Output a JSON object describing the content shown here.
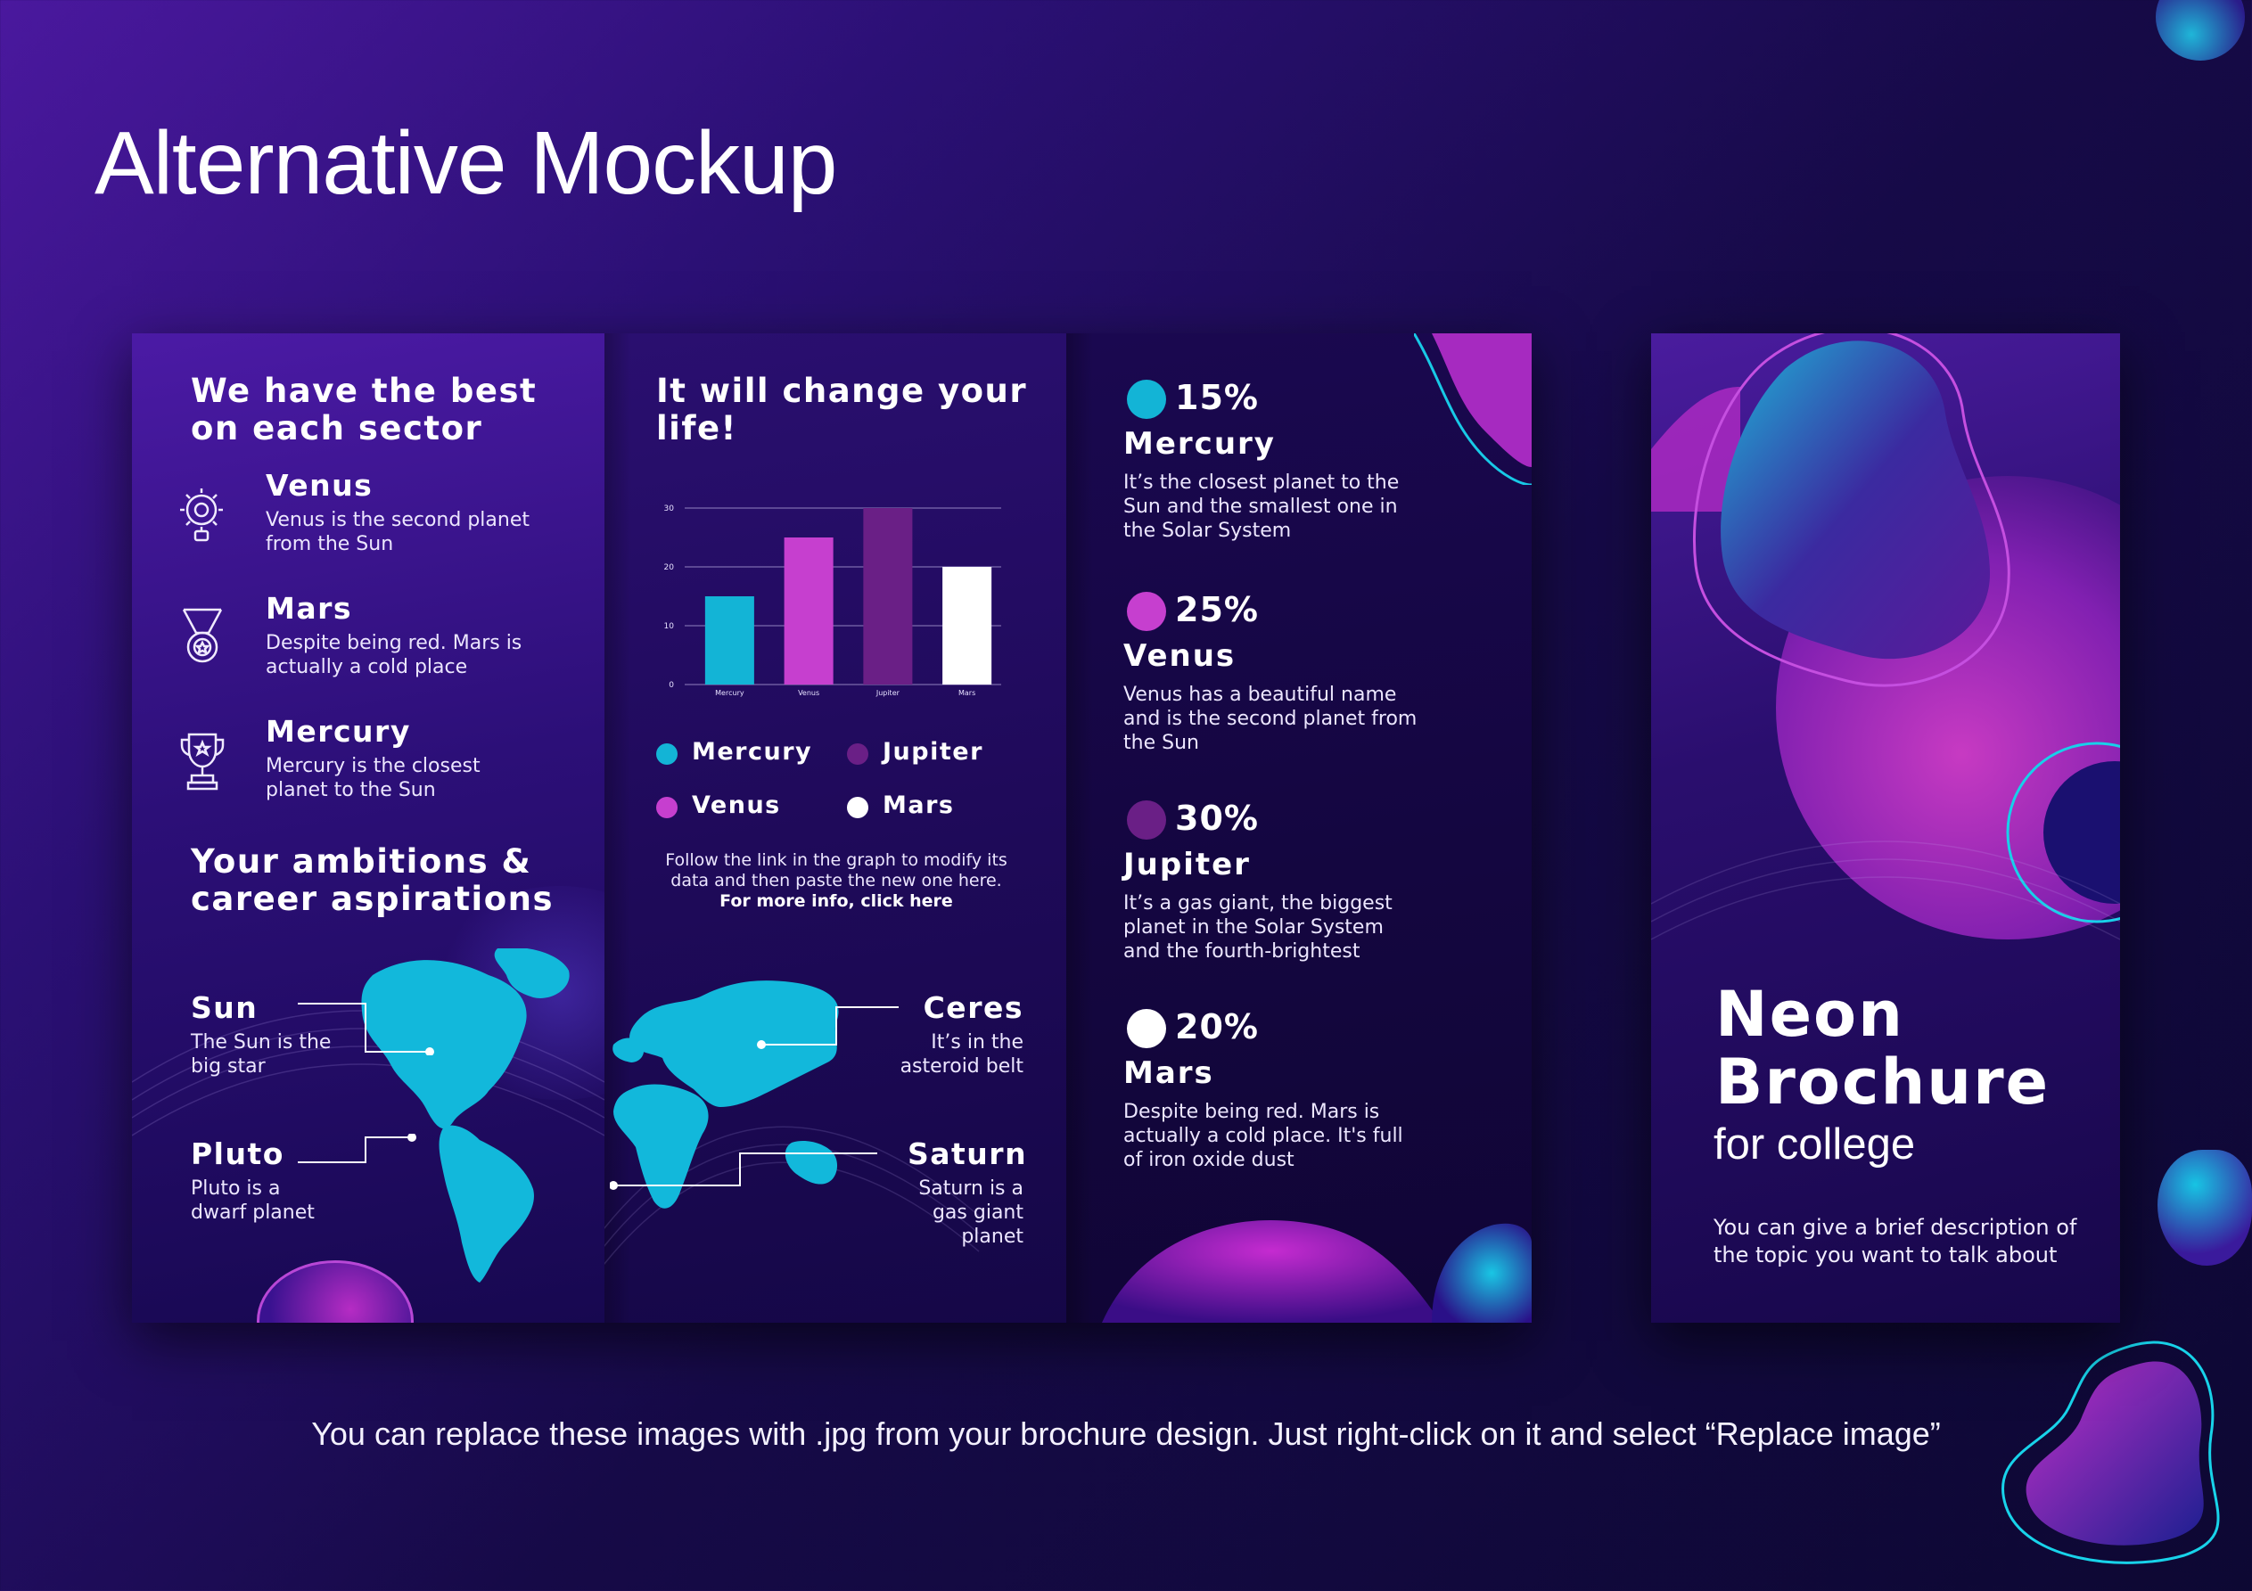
{
  "page": {
    "title": "Alternative Mockup",
    "footer_note": "You can replace these images with .jpg from your brochure design. Just right-click on it and select “Replace image”"
  },
  "panel1": {
    "heading": "We have the best on each sector",
    "items": [
      {
        "title": "Venus",
        "desc": "Venus is the second planet from the Sun",
        "icon": "lightbulb-gear-icon"
      },
      {
        "title": "Mars",
        "desc": "Despite being red. Mars is actually a cold place",
        "icon": "medal-icon"
      },
      {
        "title": "Mercury",
        "desc": "Mercury is the closest planet to the Sun",
        "icon": "trophy-icon"
      }
    ],
    "heading2": "Your ambitions & career aspirations",
    "map_labels": [
      {
        "title": "Sun",
        "desc": "The Sun is the big star"
      },
      {
        "title": "Pluto",
        "desc": "Pluto is a dwarf planet"
      }
    ]
  },
  "panel2": {
    "heading": "It will change your life!",
    "legend": [
      {
        "label": "Mercury",
        "color": "#13b4d6"
      },
      {
        "label": "Jupiter",
        "color": "#6a1f86"
      },
      {
        "label": "Venus",
        "color": "#c63fcf"
      },
      {
        "label": "Mars",
        "color": "#ffffff"
      }
    ],
    "note_line1": "Follow the link in the graph to modify its",
    "note_line2": "data and then paste the new one here.",
    "note_link": "For more info, click here",
    "map_labels": [
      {
        "title": "Ceres",
        "desc": "It’s in the asteroid belt"
      },
      {
        "title": "Saturn",
        "desc": "Saturn is a gas giant planet"
      }
    ]
  },
  "chart_data": {
    "type": "bar",
    "categories": [
      "Mercury",
      "Venus",
      "Jupiter",
      "Mars"
    ],
    "values": [
      15,
      25,
      30,
      20
    ],
    "colors": [
      "#13b4d6",
      "#c63fcf",
      "#6a1f86",
      "#ffffff"
    ],
    "yticks": [
      0,
      10,
      20,
      30
    ],
    "ylim": [
      0,
      30
    ],
    "grid": true,
    "legend_placement": "bottom"
  },
  "panel3": {
    "stats": [
      {
        "pct": "15%",
        "name": "Mercury",
        "desc": "It’s the closest planet to the Sun and the smallest one in the Solar System",
        "color": "#13b4d6"
      },
      {
        "pct": "25%",
        "name": "Venus",
        "desc": "Venus has a beautiful name and is the second planet from the Sun",
        "color": "#c63fcf"
      },
      {
        "pct": "30%",
        "name": "Jupiter",
        "desc": "It’s a gas giant, the biggest planet in the Solar System and the fourth-brightest",
        "color": "#6a1f86"
      },
      {
        "pct": "20%",
        "name": "Mars",
        "desc": "Despite being red. Mars is actually a cold place. It's full of iron oxide dust",
        "color": "#ffffff"
      }
    ]
  },
  "cover": {
    "title_line1": "Neon",
    "title_line2": "Brochure",
    "subtitle": "for college",
    "desc": "You can give a brief description of the topic you want to talk about"
  },
  "theme": {
    "cyan": "#13b4d6",
    "magenta": "#c63fcf",
    "purple": "#6a1f86",
    "navy": "#150747"
  }
}
